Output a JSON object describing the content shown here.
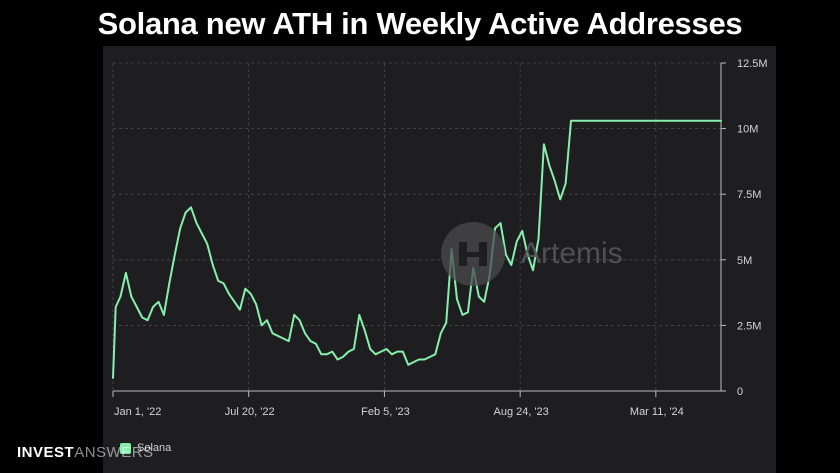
{
  "title": "Solana new ATH in Weekly Active Addresses",
  "watermark": "Artemis",
  "branding": {
    "invest": "INVEST",
    "answers": "ANSWERS"
  },
  "colors": {
    "background": "#000000",
    "panel": "#1e1e21",
    "line": "#86efac",
    "grid": "#4a4a50",
    "text": "#ffffff",
    "tick_text": "#d4d4d4"
  },
  "chart_data": {
    "type": "line",
    "title": "Solana new ATH in Weekly Active Addresses",
    "xlabel": "",
    "ylabel": "",
    "x_tick_labels": [
      "Jan 1, '22",
      "Jul 20, '22",
      "Feb 5, '23",
      "Aug 24, '23",
      "Mar 11, '24"
    ],
    "x_ticks": [
      "2022-01-01",
      "2022-07-20",
      "2023-02-05",
      "2023-08-24",
      "2024-03-11"
    ],
    "y_tick_labels": [
      "0",
      "2.5M",
      "5M",
      "7.5M",
      "10M",
      "12.5M"
    ],
    "y_ticks": [
      0,
      2500000,
      5000000,
      7500000,
      10000000,
      12500000
    ],
    "ylim": [
      0,
      12500000
    ],
    "xlim": [
      "2022-01-01",
      "2024-06-15"
    ],
    "y_axis_position": "right",
    "grid": true,
    "legend": "bottom-left",
    "series": [
      {
        "name": "Solana",
        "color": "#86efac",
        "x": [
          "2022-01-01",
          "2022-01-05",
          "2022-01-12",
          "2022-01-20",
          "2022-01-28",
          "2022-02-05",
          "2022-02-13",
          "2022-02-21",
          "2022-03-01",
          "2022-03-09",
          "2022-03-17",
          "2022-03-25",
          "2022-04-02",
          "2022-04-10",
          "2022-04-18",
          "2022-04-26",
          "2022-05-04",
          "2022-05-12",
          "2022-05-20",
          "2022-05-28",
          "2022-06-05",
          "2022-06-13",
          "2022-06-21",
          "2022-06-29",
          "2022-07-07",
          "2022-07-15",
          "2022-07-23",
          "2022-07-31",
          "2022-08-08",
          "2022-08-16",
          "2022-08-24",
          "2022-09-01",
          "2022-09-09",
          "2022-09-17",
          "2022-09-25",
          "2022-10-03",
          "2022-10-11",
          "2022-10-19",
          "2022-10-27",
          "2022-11-04",
          "2022-11-12",
          "2022-11-20",
          "2022-11-28",
          "2022-12-06",
          "2022-12-14",
          "2022-12-22",
          "2022-12-30",
          "2023-01-07",
          "2023-01-15",
          "2023-01-23",
          "2023-01-31",
          "2023-02-08",
          "2023-02-16",
          "2023-02-24",
          "2023-03-04",
          "2023-03-12",
          "2023-03-20",
          "2023-03-28",
          "2023-04-05",
          "2023-04-13",
          "2023-04-21",
          "2023-04-29",
          "2023-05-07",
          "2023-05-15",
          "2023-05-23",
          "2023-05-31",
          "2023-06-08",
          "2023-06-16",
          "2023-06-24",
          "2023-07-02",
          "2023-07-10",
          "2023-07-18",
          "2023-07-26",
          "2023-08-03",
          "2023-08-11",
          "2023-08-19",
          "2023-08-27",
          "2023-09-04",
          "2023-09-12",
          "2023-09-20",
          "2023-09-28",
          "2023-10-06",
          "2023-10-14",
          "2023-10-22",
          "2023-10-30",
          "2023-11-07",
          "2023-11-15",
          "2023-11-23",
          "2023-12-01",
          "2023-12-09",
          "2023-12-17",
          "2023-12-25",
          "2024-01-02",
          "2024-01-10",
          "2024-01-18",
          "2024-01-26",
          "2024-02-03",
          "2024-02-11",
          "2024-02-19",
          "2024-02-27",
          "2024-03-06",
          "2024-03-14",
          "2024-03-22",
          "2024-03-30",
          "2024-04-07",
          "2024-04-15",
          "2024-04-23",
          "2024-05-01",
          "2024-05-09",
          "2024-05-17",
          "2024-05-25",
          "2024-06-02",
          "2024-06-10",
          "2024-06-15"
        ],
        "values": [
          500000,
          3200000,
          3600000,
          4500000,
          3600000,
          3200000,
          2800000,
          2700000,
          3200000,
          3400000,
          2900000,
          4100000,
          5200000,
          6200000,
          6800000,
          7000000,
          6400000,
          6000000,
          5600000,
          4800000,
          4200000,
          4100000,
          3700000,
          3400000,
          3100000,
          3900000,
          3700000,
          3300000,
          2500000,
          2700000,
          2200000,
          2100000,
          2000000,
          1900000,
          2900000,
          2700000,
          2200000,
          1900000,
          1800000,
          1400000,
          1400000,
          1500000,
          1200000,
          1300000,
          1500000,
          1600000,
          2900000,
          2300000,
          1600000,
          1400000,
          1500000,
          1600000,
          1400000,
          1500000,
          1500000,
          1000000,
          1100000,
          1200000,
          1200000,
          1300000,
          1400000,
          2200000,
          2600000,
          5400000,
          3500000,
          2900000,
          3000000,
          4700000,
          3600000,
          3400000,
          4400000,
          6200000,
          6400000,
          5200000,
          4800000,
          5700000,
          6100000,
          5200000,
          4600000,
          5800000,
          9400000,
          8600000,
          8000000,
          7300000,
          7900000,
          10300000,
          10300000,
          10300000,
          10300000,
          10300000,
          10300000,
          10300000,
          10300000,
          10300000,
          10300000,
          10300000,
          10300000,
          10300000,
          10300000,
          10300000,
          10300000,
          10300000,
          10300000,
          10300000,
          10300000,
          10300000,
          10300000,
          10300000,
          10300000,
          10300000,
          10300000,
          10300000,
          10300000,
          10300000
        ]
      }
    ]
  }
}
